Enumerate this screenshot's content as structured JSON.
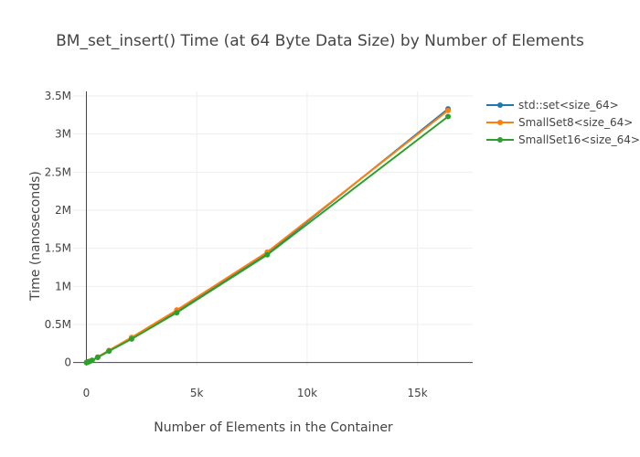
{
  "chart_data": {
    "type": "line",
    "title": "BM_set_insert() Time (at 64 Byte Data Size) by Number of Elements",
    "xlabel": "Number of Elements in the Container",
    "ylabel": "Time (nanoseconds)",
    "xlim": [
      -600,
      17500
    ],
    "ylim": [
      -40000,
      3560000
    ],
    "x_ticks": [
      0,
      5000,
      10000,
      15000
    ],
    "x_tick_labels": [
      "0",
      "5k",
      "10k",
      "15k"
    ],
    "y_ticks": [
      0,
      500000,
      1000000,
      1500000,
      2000000,
      2500000,
      3000000,
      3500000
    ],
    "y_tick_labels": [
      "0",
      "0.5M",
      "1M",
      "1.5M",
      "2M",
      "2.5M",
      "3M",
      "3.5M"
    ],
    "grid": true,
    "legend_position": "top-right",
    "x": [
      8,
      16,
      32,
      64,
      128,
      256,
      512,
      1024,
      2048,
      4096,
      8192,
      16384
    ],
    "series": [
      {
        "name": "std::set<size_64>",
        "color": "#1f77b4",
        "values": [
          800,
          1600,
          3300,
          6800,
          14000,
          29000,
          70000,
          155000,
          320000,
          670000,
          1430000,
          3330000
        ]
      },
      {
        "name": "SmallSet8<size_64>",
        "color": "#ff7f0e",
        "values": [
          700,
          1500,
          3200,
          6700,
          14000,
          29000,
          72000,
          160000,
          330000,
          690000,
          1450000,
          3310000
        ]
      },
      {
        "name": "SmallSet16<size_64>",
        "color": "#2ca02c",
        "values": [
          600,
          1400,
          3100,
          6500,
          13500,
          28000,
          68000,
          150000,
          310000,
          655000,
          1415000,
          3230000
        ]
      }
    ]
  }
}
